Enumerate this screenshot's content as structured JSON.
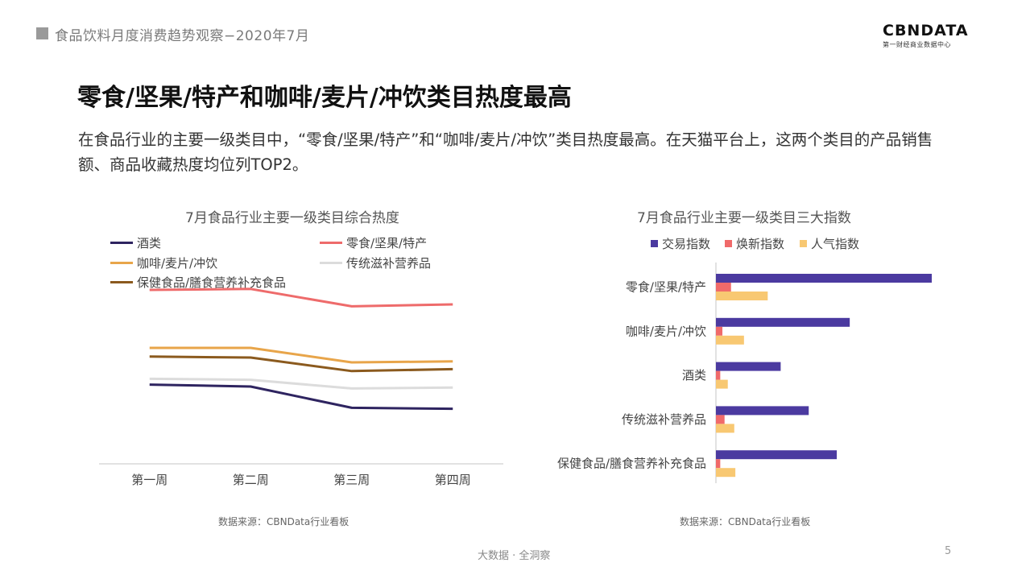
{
  "header": {
    "title": "食品饮料月度消费趋势观察−2020年7月"
  },
  "logo": {
    "main": "CBNDATA",
    "sub": "第一财经商业数据中心"
  },
  "page": {
    "title": "零食/坚果/特产和咖啡/麦片/冲饮类目热度最高",
    "description": "在食品行业的主要一级类目中，“零食/坚果/特产”和“咖啡/麦片/冲饮”类目热度最高。在天猫平台上，这两个类目的产品销售额、商品收藏热度均位列TOP2。"
  },
  "left_source": "数据来源：CBNData行业看板",
  "right_source": "数据来源：CBNData行业看板",
  "footer": {
    "slogan": "大数据 · 全洞察",
    "page_number": "5"
  },
  "chart_data": [
    {
      "type": "line",
      "title": "7月食品行业主要一级类目综合热度",
      "categories": [
        "第一周",
        "第二周",
        "第三周",
        "第四周"
      ],
      "ylim": [
        0,
        100
      ],
      "grid": false,
      "legend": "top",
      "series": [
        {
          "name": "酒类",
          "color": "#2e2460",
          "values": [
            41,
            40,
            29,
            28.5
          ]
        },
        {
          "name": "零食/坚果/特产",
          "color": "#ee6b6b",
          "values": [
            90,
            90.5,
            81.5,
            82.5
          ]
        },
        {
          "name": "咖啡/麦片/冲饮",
          "color": "#e8a54a",
          "values": [
            60,
            60,
            52.5,
            53
          ]
        },
        {
          "name": "传统滋补营养品",
          "color": "#dcdcdc",
          "values": [
            44,
            43.5,
            39,
            39.5
          ]
        },
        {
          "name": "保健食品/膳食营养补充食品",
          "color": "#8b5a1e",
          "values": [
            55.5,
            55,
            48,
            49
          ]
        }
      ]
    },
    {
      "type": "bar",
      "orientation": "horizontal",
      "title": "7月食品行业主要一级类目三大指数",
      "categories": [
        "零食/坚果/特产",
        "咖啡/麦片/冲饮",
        "酒类",
        "传统滋补营养品",
        "保健食品/膳食营养补充食品"
      ],
      "xlim": [
        0,
        100
      ],
      "grid": false,
      "legend": "top",
      "series": [
        {
          "name": "交易指数",
          "color": "#4b3aa0",
          "values": [
            100,
            62,
            30,
            43,
            56
          ]
        },
        {
          "name": "焕新指数",
          "color": "#f06a6a",
          "values": [
            7,
            3,
            2,
            4,
            2
          ]
        },
        {
          "name": "人气指数",
          "color": "#f8c872",
          "values": [
            24,
            13,
            5.5,
            8.5,
            9
          ]
        }
      ]
    }
  ]
}
